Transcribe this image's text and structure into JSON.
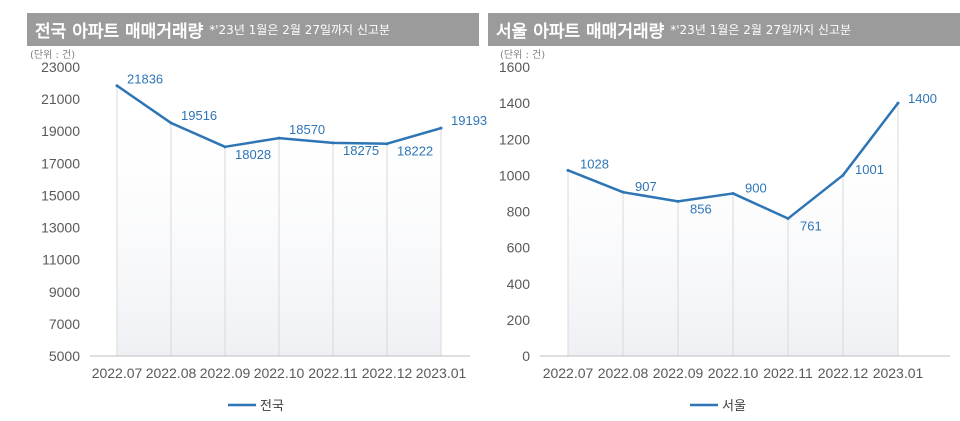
{
  "chart_data": [
    {
      "type": "line",
      "title": "전국 아파트 매매거래량",
      "note": "*'23년 1월은 2월 27일까지 신고분",
      "unit_label": "(단위 : 건)",
      "categories": [
        "2022.07",
        "2022.08",
        "2022.09",
        "2022.10",
        "2022.11",
        "2022.12",
        "2023.01"
      ],
      "series": [
        {
          "name": "전국",
          "values": [
            21836,
            19516,
            18028,
            18570,
            18275,
            18222,
            19193
          ]
        }
      ],
      "y_ticks": [
        "23000",
        "21000",
        "19000",
        "17000",
        "15000",
        "13000",
        "11000",
        "9000",
        "7000",
        "5000"
      ],
      "ylim": [
        5000,
        23000
      ],
      "legend": "bottom",
      "line_color": "#2e75b6",
      "label_color": "#2e75b6"
    },
    {
      "type": "line",
      "title": "서울 아파트 매매거래량",
      "note": "*'23년 1월은 2월 27일까지 신고분",
      "unit_label": "(단위 : 건)",
      "categories": [
        "2022.07",
        "2022.08",
        "2022.09",
        "2022.10",
        "2022.11",
        "2022.12",
        "2023.01"
      ],
      "series": [
        {
          "name": "서울",
          "values": [
            1028,
            907,
            856,
            900,
            761,
            1001,
            1400
          ]
        }
      ],
      "y_ticks": [
        "1600",
        "1400",
        "1200",
        "1000",
        "800",
        "600",
        "400",
        "200",
        "0"
      ],
      "ylim": [
        0,
        1600
      ],
      "legend": "bottom",
      "line_color": "#2e75b6",
      "label_color": "#2e75b6"
    }
  ]
}
